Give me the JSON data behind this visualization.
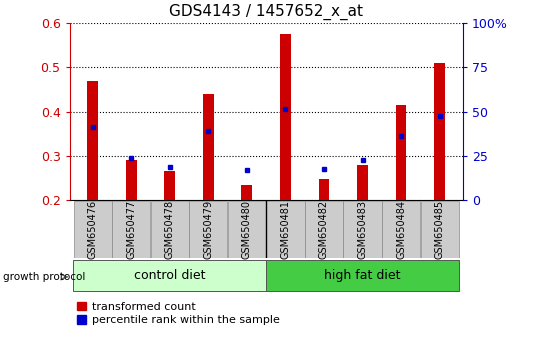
{
  "title": "GDS4143 / 1457652_x_at",
  "samples": [
    "GSM650476",
    "GSM650477",
    "GSM650478",
    "GSM650479",
    "GSM650480",
    "GSM650481",
    "GSM650482",
    "GSM650483",
    "GSM650484",
    "GSM650485"
  ],
  "red_values": [
    0.47,
    0.29,
    0.265,
    0.44,
    0.235,
    0.575,
    0.248,
    0.28,
    0.415,
    0.51
  ],
  "blue_values": [
    0.365,
    0.295,
    0.275,
    0.355,
    0.268,
    0.405,
    0.27,
    0.29,
    0.345,
    0.39
  ],
  "ymin": 0.2,
  "ymax": 0.6,
  "yticks": [
    0.2,
    0.3,
    0.4,
    0.5,
    0.6
  ],
  "y2ticks_vals": [
    0.2,
    0.3,
    0.4,
    0.5,
    0.6
  ],
  "y2ticks_labels": [
    "0",
    "25",
    "50",
    "75",
    "100%"
  ],
  "control_diet_label": "control diet",
  "high_fat_label": "high fat diet",
  "growth_protocol_label": "growth protocol",
  "legend_red": "transformed count",
  "legend_blue": "percentile rank within the sample",
  "red_color": "#cc0000",
  "blue_color": "#0000cc",
  "control_diet_color": "#ccffcc",
  "high_fat_color": "#44cc44",
  "tick_label_bg": "#cccccc",
  "title_fontsize": 11,
  "bar_width": 0.28
}
